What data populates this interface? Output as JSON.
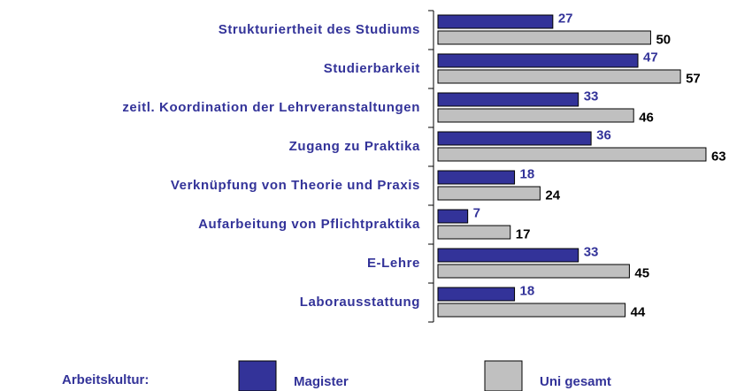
{
  "chart_data": {
    "type": "bar",
    "orientation": "horizontal",
    "categories": [
      "Strukturiertheit des Studiums",
      "Studierbarkeit",
      "zeitl. Koordination der Lehrveranstaltungen",
      "Zugang zu Praktika",
      "Verknüpfung von Theorie und Praxis",
      "Aufarbeitung von Pflichtpraktika",
      "E-Lehre",
      "Laborausstattung"
    ],
    "series": [
      {
        "name": "Magister",
        "color": "#333399",
        "values": [
          27,
          47,
          33,
          36,
          18,
          7,
          33,
          18
        ]
      },
      {
        "name": "Uni gesamt",
        "color": "#c0c0c0",
        "values": [
          50,
          57,
          46,
          63,
          24,
          17,
          45,
          44
        ]
      }
    ],
    "xlim": [
      0,
      68
    ],
    "legend_title": "Arbeitskultur:",
    "legend": "bottom"
  }
}
